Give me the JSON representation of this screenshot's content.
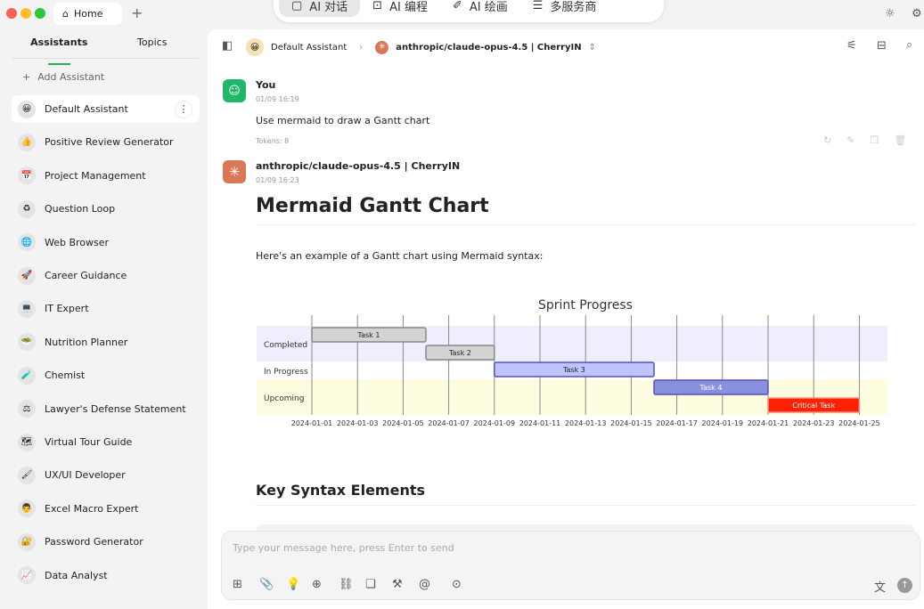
{
  "window": {
    "home_tab": "Home",
    "colors": {
      "close": "#fe5f57",
      "min": "#febc2e",
      "max": "#28c840",
      "accent": "#1fb15c"
    }
  },
  "top_tabs": [
    {
      "label": "AI 对话",
      "icon": "chat-icon",
      "active": true
    },
    {
      "label": "AI 编程",
      "icon": "robot-icon"
    },
    {
      "label": "AI 绘画",
      "icon": "brush-icon"
    },
    {
      "label": "多服务商",
      "icon": "server-icon"
    }
  ],
  "sidebar": {
    "tabs": [
      "Assistants",
      "Topics"
    ],
    "add_label": "Add Assistant",
    "items": [
      {
        "label": "Default Assistant",
        "icon": "😀"
      },
      {
        "label": "Positive Review Generator",
        "icon": "👍"
      },
      {
        "label": "Project Management",
        "icon": "📅"
      },
      {
        "label": "Question Loop",
        "icon": "♻"
      },
      {
        "label": "Web Browser",
        "icon": "🌐"
      },
      {
        "label": "Career Guidance",
        "icon": "🚀"
      },
      {
        "label": "IT Expert",
        "icon": "💻"
      },
      {
        "label": "Nutrition Planner",
        "icon": "🥗"
      },
      {
        "label": "Chemist",
        "icon": "🧪"
      },
      {
        "label": "Lawyer's Defense Statement",
        "icon": "⚖"
      },
      {
        "label": "Virtual Tour Guide",
        "icon": "🗺"
      },
      {
        "label": "UX/UI Developer",
        "icon": "🖌"
      },
      {
        "label": "Excel Macro Expert",
        "icon": "👨"
      },
      {
        "label": "Password Generator",
        "icon": "🔐"
      },
      {
        "label": "Data Analyst",
        "icon": "📈"
      }
    ]
  },
  "header": {
    "assistant": "Default Assistant",
    "model": "anthropic/claude-opus-4.5 | CherryIN"
  },
  "messages": {
    "user": {
      "name": "You",
      "time": "01/09 16:19",
      "text": "Use mermaid to draw a Gantt chart",
      "tokens": "Tokens: 8"
    },
    "assistant": {
      "name": "anthropic/claude-opus-4.5 | CherryIN",
      "time": "01/09 16:23",
      "heading": "Mermaid Gantt Chart",
      "intro": "Here's an example of a Gantt chart using Mermaid syntax:",
      "heading2": "Key Syntax Elements"
    }
  },
  "chart_data": {
    "type": "gantt",
    "title": "Sprint Progress",
    "sections": [
      {
        "name": "Completed",
        "color": "#eeeeff"
      },
      {
        "name": "In Progress",
        "color": "#ffffff"
      },
      {
        "name": "Upcoming",
        "color": "#fffde0"
      }
    ],
    "tasks": [
      {
        "name": "Task 1",
        "section": "Completed",
        "start": "2024-01-01",
        "end": "2024-01-06",
        "status": "done",
        "color": "#d3d3d3"
      },
      {
        "name": "Task 2",
        "section": "Completed",
        "start": "2024-01-06",
        "end": "2024-01-09",
        "status": "done",
        "color": "#d3d3d3"
      },
      {
        "name": "Task 3",
        "section": "In Progress",
        "start": "2024-01-09",
        "end": "2024-01-16",
        "status": "active",
        "color": "#bfc4ff"
      },
      {
        "name": "Task 4",
        "section": "Upcoming",
        "start": "2024-01-16",
        "end": "2024-01-21",
        "status": "planned",
        "color": "#8a90dd"
      },
      {
        "name": "Critical Task",
        "section": "Upcoming",
        "start": "2024-01-21",
        "end": "2024-01-25",
        "status": "critical",
        "color": "#ff2200"
      }
    ],
    "ticks": [
      "2024-01-01",
      "2024-01-03",
      "2024-01-05",
      "2024-01-07",
      "2024-01-09",
      "2024-01-11",
      "2024-01-13",
      "2024-01-15",
      "2024-01-17",
      "2024-01-19",
      "2024-01-21",
      "2024-01-23",
      "2024-01-25"
    ],
    "xlim": [
      "2024-01-01",
      "2024-01-25"
    ]
  },
  "input": {
    "placeholder": "Type your message here, press Enter to send"
  }
}
